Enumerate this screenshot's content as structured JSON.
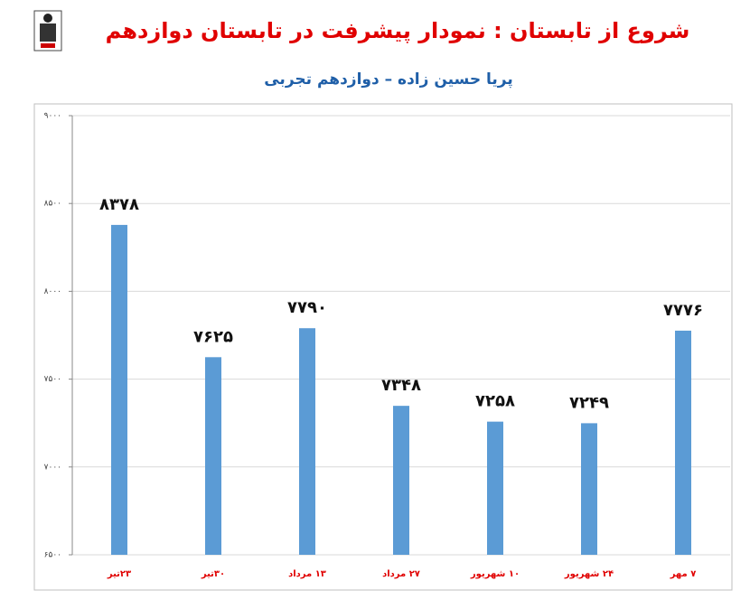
{
  "chart_data": {
    "type": "bar",
    "title": "شروع از تابستان : نمودار پیشرفت در تابستان دوازدهم",
    "subtitle": "پریا حسین زاده – دوازدهم تجربی",
    "categories": [
      "۲۳تیر",
      "۳۰تیر",
      "۱۳ مرداد",
      "۲۷ مرداد",
      "۱۰ شهریور",
      "۲۴ شهریور",
      "۷ مهر"
    ],
    "values": [
      8378,
      7625,
      7790,
      7348,
      7258,
      7249,
      7776
    ],
    "value_labels": [
      "۸۳۷۸",
      "۷۶۲۵",
      "۷۷۹۰",
      "۷۳۴۸",
      "۷۲۵۸",
      "۷۲۴۹",
      "۷۷۷۶"
    ],
    "color": "#5b9bd5",
    "ylim": [
      6500,
      9000
    ],
    "yticks": [
      {
        "value": 6500,
        "label": "۶۵۰۰"
      },
      {
        "value": 7000,
        "label": "۷۰۰۰"
      },
      {
        "value": 7500,
        "label": "۷۵۰۰"
      },
      {
        "value": 8000,
        "label": "۸۰۰۰"
      },
      {
        "value": 8500,
        "label": "۸۵۰۰"
      },
      {
        "value": 9000,
        "label": "۹۰۰۰"
      }
    ],
    "grid": true
  }
}
